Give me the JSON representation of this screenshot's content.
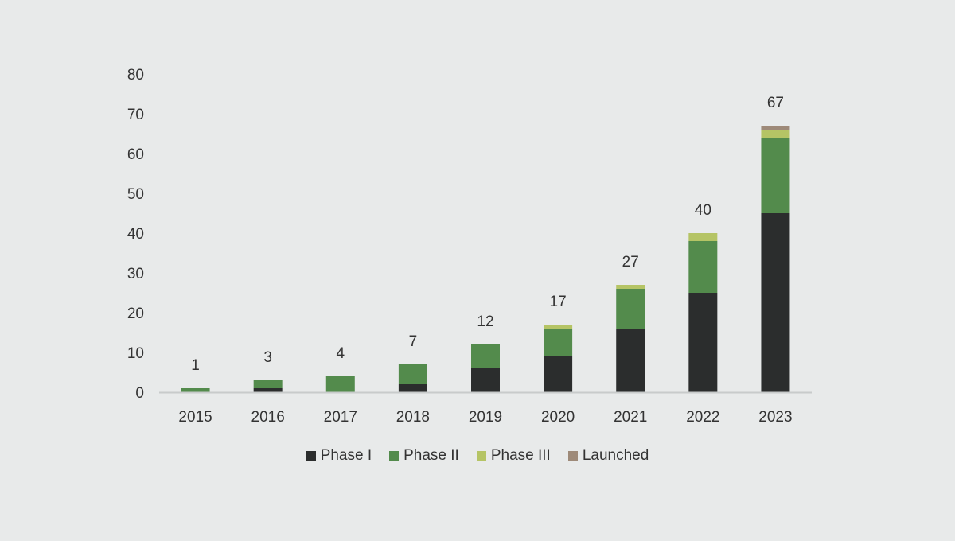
{
  "chart_data": {
    "type": "bar",
    "stacked": true,
    "categories": [
      "2015",
      "2016",
      "2017",
      "2018",
      "2019",
      "2020",
      "2021",
      "2022",
      "2023"
    ],
    "series": [
      {
        "name": "Phase I",
        "color": "#2b2d2d",
        "values": [
          0,
          1,
          0,
          2,
          6,
          9,
          16,
          25,
          45
        ]
      },
      {
        "name": "Phase II",
        "color": "#538b4c",
        "values": [
          1,
          2,
          4,
          5,
          6,
          7,
          10,
          13,
          19
        ]
      },
      {
        "name": "Phase III",
        "color": "#b5c465",
        "values": [
          0,
          0,
          0,
          0,
          0,
          1,
          1,
          2,
          2
        ]
      },
      {
        "name": "Launched",
        "color": "#9e8a79",
        "values": [
          0,
          0,
          0,
          0,
          0,
          0,
          0,
          0,
          1
        ]
      }
    ],
    "totals": [
      1,
      3,
      4,
      7,
      12,
      17,
      27,
      40,
      67
    ],
    "ylim": [
      0,
      80
    ],
    "yticks": [
      0,
      10,
      20,
      30,
      40,
      50,
      60,
      70,
      80
    ],
    "grid": false,
    "legend_position": "bottom",
    "title": "",
    "xlabel": "",
    "ylabel": ""
  }
}
